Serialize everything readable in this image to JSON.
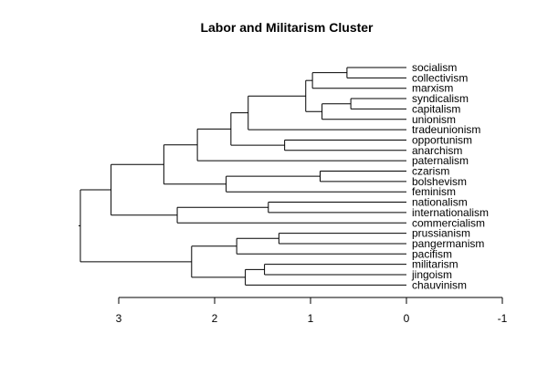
{
  "chart_data": {
    "type": "dendrogram",
    "title": "Labor and Militarism Cluster",
    "xlabel": "",
    "ylabel": "",
    "xlim": [
      3,
      -1
    ],
    "xticks": [
      3,
      2,
      1,
      0,
      -1
    ],
    "leaves": [
      "socialism",
      "collectivism",
      "marxism",
      "syndicalism",
      "capitalism",
      "unionism",
      "tradeunionism",
      "opportunism",
      "anarchism",
      "paternalism",
      "czarism",
      "bolshevism",
      "feminism",
      "nationalism",
      "internationalism",
      "commercialism",
      "prussianism",
      "pangermanism",
      "pacifism",
      "militarism",
      "jingoism",
      "chauvinism"
    ],
    "merges": [
      {
        "id": "m1",
        "children": [
          "socialism",
          "collectivism"
        ],
        "height": 0.62
      },
      {
        "id": "m2",
        "children": [
          "m1",
          "marxism"
        ],
        "height": 0.98
      },
      {
        "id": "m3",
        "children": [
          "syndicalism",
          "capitalism"
        ],
        "height": 0.58
      },
      {
        "id": "m4",
        "children": [
          "m3",
          "unionism"
        ],
        "height": 0.88
      },
      {
        "id": "m5",
        "children": [
          "m2",
          "m4"
        ],
        "height": 1.05
      },
      {
        "id": "m6",
        "children": [
          "m5",
          "tradeunionism"
        ],
        "height": 1.65
      },
      {
        "id": "m7",
        "children": [
          "opportunism",
          "anarchism"
        ],
        "height": 1.27
      },
      {
        "id": "m8",
        "children": [
          "m6",
          "m7"
        ],
        "height": 1.83
      },
      {
        "id": "m9",
        "children": [
          "m8",
          "paternalism"
        ],
        "height": 2.18
      },
      {
        "id": "m10",
        "children": [
          "czarism",
          "bolshevism"
        ],
        "height": 0.9
      },
      {
        "id": "m11",
        "children": [
          "m10",
          "feminism"
        ],
        "height": 1.88
      },
      {
        "id": "m12",
        "children": [
          "m9",
          "m11"
        ],
        "height": 2.53
      },
      {
        "id": "m13",
        "children": [
          "nationalism",
          "internationalism"
        ],
        "height": 1.44
      },
      {
        "id": "m14",
        "children": [
          "m13",
          "commercialism"
        ],
        "height": 2.39
      },
      {
        "id": "m15",
        "children": [
          "m12",
          "m14"
        ],
        "height": 3.08
      },
      {
        "id": "m16",
        "children": [
          "prussianism",
          "pangermanism"
        ],
        "height": 1.33
      },
      {
        "id": "m17",
        "children": [
          "m16",
          "pacifism"
        ],
        "height": 1.77
      },
      {
        "id": "m18",
        "children": [
          "militarism",
          "jingoism"
        ],
        "height": 1.48
      },
      {
        "id": "m19",
        "children": [
          "m18",
          "chauvinism"
        ],
        "height": 1.68
      },
      {
        "id": "m20",
        "children": [
          "m17",
          "m19"
        ],
        "height": 2.24
      },
      {
        "id": "m21",
        "children": [
          "m15",
          "m20"
        ],
        "height": 3.4
      }
    ]
  }
}
